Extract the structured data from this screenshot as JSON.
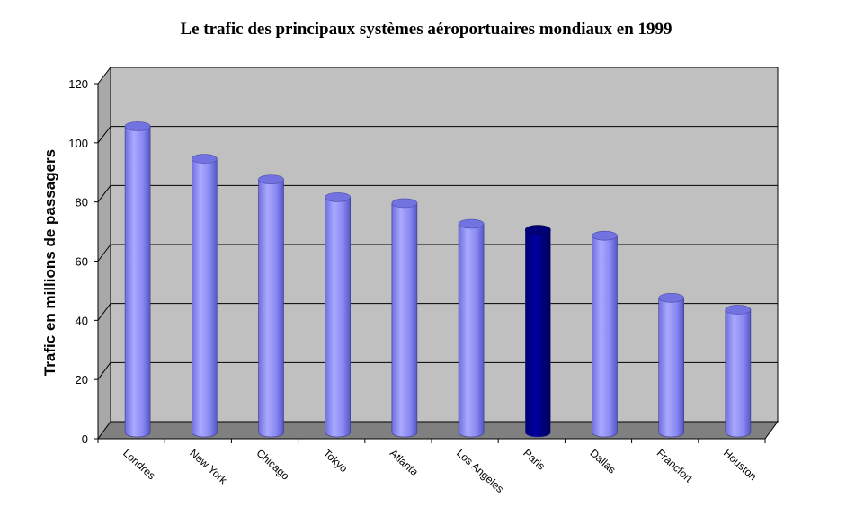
{
  "chart_data": {
    "type": "bar",
    "title": "Le trafic des principaux systèmes aéroportuaires mondiaux en 1999",
    "ylabel": "Trafic en millions de passagers",
    "xlabel": "",
    "categories": [
      "Londres",
      "New York",
      "Chicago",
      "Tokyo",
      "Atlanta",
      "Los Angeles",
      "Paris",
      "Dallas",
      "Francfort",
      "Houston"
    ],
    "values": [
      105,
      94,
      87,
      81,
      79,
      72,
      70,
      68,
      47,
      43
    ],
    "ylim": [
      0,
      120
    ],
    "yticks": [
      0,
      20,
      40,
      60,
      80,
      100,
      120
    ],
    "grid": true,
    "legend": "none",
    "style": "3d-cylinder",
    "colors": {
      "bar": "#8f8ff3",
      "highlight": "#00007f",
      "highlight_category": "Paris",
      "wall": "#c0c0c0",
      "floor": "#808080"
    }
  }
}
